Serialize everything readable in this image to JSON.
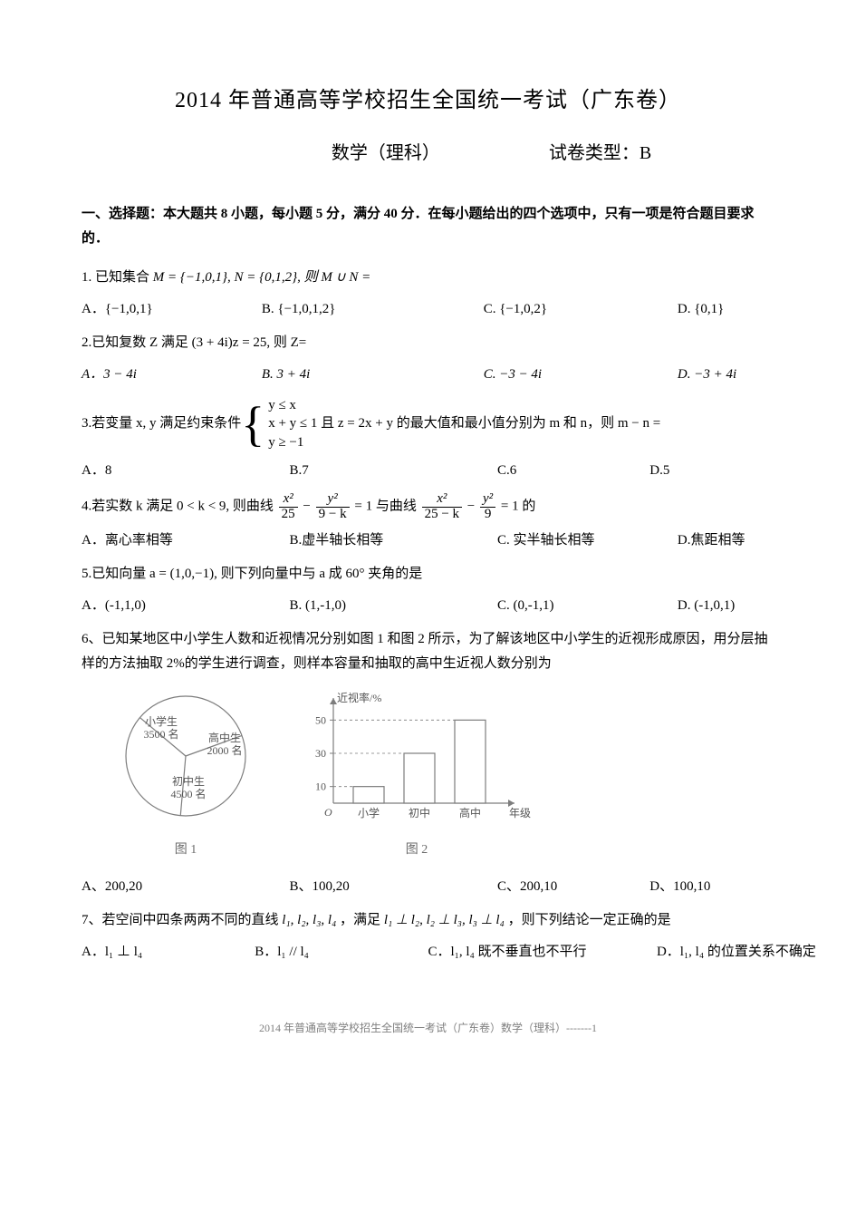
{
  "page": {
    "title": "2014 年普通高等学校招生全国统一考试（广东卷）",
    "subject": "数学（理科）",
    "exam_type_label": "试卷类型：B",
    "section_heading": "一、选择题：本大题共 8 小题，每小题 5 分，满分 40 分．在每小题给出的四个选项中，只有一项是符合题目要求的．",
    "footer": "2014 年普通高等学校招生全国统一考试（广东卷）数学（理科）-------1"
  },
  "q1": {
    "stem_prefix": "1.  已知集合 ",
    "stem_math": "M = {−1,0,1}, N = {0,1,2}, 则 M ∪ N =",
    "A": "A．{−1,0,1}",
    "B": "B.  {−1,0,1,2}",
    "C": "C.   {−1,0,2}",
    "D": "D.   {0,1}"
  },
  "q2": {
    "stem": "2.已知复数 Z 满足 (3 + 4i)z = 25, 则 Z=",
    "A": "A．3 − 4i",
    "B": "B.  3 + 4i",
    "C": "C.  −3 − 4i",
    "D": "D.  −3 + 4i"
  },
  "q3": {
    "stem_prefix": "3.若变量 x, y 满足约束条件",
    "sys1": "y ≤ x",
    "sys2": "x + y ≤ 1 且 z = 2x + y 的最大值和最小值分别为 m 和 n，则 m − n =",
    "sys3": "y ≥ −1",
    "A": "A．8",
    "B": "B.7",
    "C": "C.6",
    "D": "D.5"
  },
  "q4": {
    "stem_prefix": "4.若实数 k 满足 0 < k < 9, 则曲线",
    "mid": "= 1 与曲线",
    "tail": "= 1 的",
    "f1_num": "x²",
    "f1_den": "25",
    "f2_num": "y²",
    "f2_den": "9 − k",
    "f3_num": "x²",
    "f3_den": "25 − k",
    "f4_num": "y²",
    "f4_den": "9",
    "A": "A．离心率相等",
    "B": "B.虚半轴长相等",
    "C": "C.  实半轴长相等",
    "D": "D.焦距相等"
  },
  "q5": {
    "stem": "5.已知向量 a = (1,0,−1), 则下列向量中与 a 成 60° 夹角的是",
    "A": "A．(-1,1,0)",
    "B": "B.    (1,-1,0)",
    "C": "C.    (0,-1,1)",
    "D": "D.    (-1,0,1)"
  },
  "q6": {
    "stem": "6、已知某地区中小学生人数和近视情况分别如图 1 和图 2 所示，为了解该地区中小学生的近视形成原因，用分层抽样的方法抽取 2%的学生进行调查，则样本容量和抽取的高中生近视人数分别为",
    "A": "A、200,20",
    "B": "B、100,20",
    "C": "C、200,10",
    "D": "D、100,10"
  },
  "q7": {
    "stem_prefix": "7、若空间中四条两两不同的直线 ",
    "stem_lines": "l₁, l₂, l₃, l₄",
    "stem_mid": "，满足 ",
    "stem_cond": "l₁ ⊥ l₂, l₂ ⊥ l₃, l₃ ⊥ l₄",
    "stem_tail": "，则下列结论一定正确的是",
    "A": "A．l₁ ⊥ l₄",
    "B": "B．l₁ // l₄",
    "C": "C．l₁, l₄ 既不垂直也不平行",
    "D": "D．l₁, l₄ 的位置关系不确定"
  },
  "fig1": {
    "caption": "图 1",
    "slice1_label1": "小学生",
    "slice1_label2": "3500 名",
    "slice2_label1": "高中生",
    "slice2_label2": "2000 名",
    "slice3_label1": "初中生",
    "slice3_label2": "4500 名",
    "colors": {
      "stroke": "#7d7d7d",
      "fill": "#ffffff"
    }
  },
  "fig2": {
    "caption": "图 2",
    "y_label": "近视率/%",
    "x_label": "年级",
    "y_ticks": [
      "10",
      "30",
      "50"
    ],
    "bars": [
      {
        "label": "小学",
        "value": 10
      },
      {
        "label": "初中",
        "value": 30
      },
      {
        "label": "高中",
        "value": 50
      }
    ],
    "colors": {
      "stroke": "#7d7d7d",
      "fill": "#ffffff"
    },
    "y_max": 60
  }
}
